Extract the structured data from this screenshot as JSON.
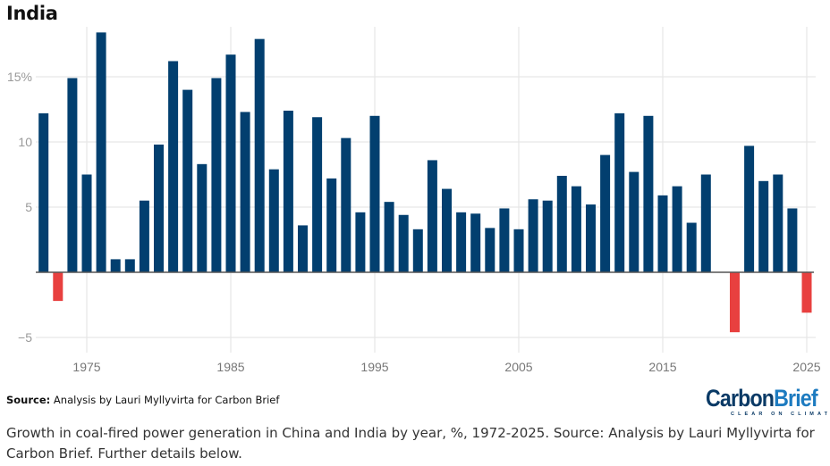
{
  "header": {
    "title": "India"
  },
  "chart_data": {
    "type": "bar",
    "title": "India",
    "xlabel": "",
    "ylabel": "",
    "y_unit": "%",
    "ylim": [
      -6,
      18.5
    ],
    "yticks": [
      -5,
      0,
      5,
      10,
      15
    ],
    "ytick_labels": [
      "−5",
      "",
      "5",
      "10",
      "15%"
    ],
    "xticks": [
      1975,
      1985,
      1995,
      2005,
      2015,
      2025
    ],
    "xtick_labels": [
      "1975",
      "1985",
      "1995",
      "2005",
      "2015",
      "2025"
    ],
    "grid": true,
    "legend": "none",
    "colors": {
      "positive": "#023f6f",
      "negative": "#e8403f",
      "zero_line": "#555555",
      "grid": "#e6e6e6"
    },
    "categories": [
      1972,
      1973,
      1974,
      1975,
      1976,
      1977,
      1978,
      1979,
      1980,
      1981,
      1982,
      1983,
      1984,
      1985,
      1986,
      1987,
      1988,
      1989,
      1990,
      1991,
      1992,
      1993,
      1994,
      1995,
      1996,
      1997,
      1998,
      1999,
      2000,
      2001,
      2002,
      2003,
      2004,
      2005,
      2006,
      2007,
      2008,
      2009,
      2010,
      2011,
      2012,
      2013,
      2014,
      2015,
      2016,
      2017,
      2018,
      2019,
      2020,
      2021,
      2022,
      2023,
      2024,
      2025
    ],
    "series": [
      {
        "name": "Growth in coal-fired power generation, India (%)",
        "values": [
          12.2,
          -2.2,
          14.9,
          7.5,
          18.4,
          1.0,
          1.0,
          5.5,
          9.8,
          16.2,
          14.0,
          8.3,
          14.9,
          16.7,
          12.3,
          17.9,
          7.9,
          12.4,
          3.6,
          11.9,
          7.2,
          10.3,
          4.6,
          12.0,
          5.4,
          4.4,
          3.3,
          8.6,
          6.4,
          4.6,
          4.5,
          3.4,
          4.9,
          3.3,
          5.6,
          5.5,
          7.4,
          6.6,
          5.2,
          9.0,
          12.2,
          7.7,
          12.0,
          5.9,
          6.6,
          3.8,
          7.5,
          0.0,
          -4.6,
          9.7,
          7.0,
          7.5,
          4.9,
          -3.1
        ]
      }
    ]
  },
  "footer": {
    "source_label": "Source:",
    "source_text": " Analysis by Lauri Myllyvirta for Carbon Brief",
    "logo_carbon": "Carbon",
    "logo_brief": "Brief",
    "logo_tagline": "CLEAR ON CLIMATE",
    "caption": "Growth in coal-fired power generation in China and India by year, %, 1972-2025. Source: Analysis by Lauri Myllyvirta for Carbon Brief. Further details below."
  }
}
